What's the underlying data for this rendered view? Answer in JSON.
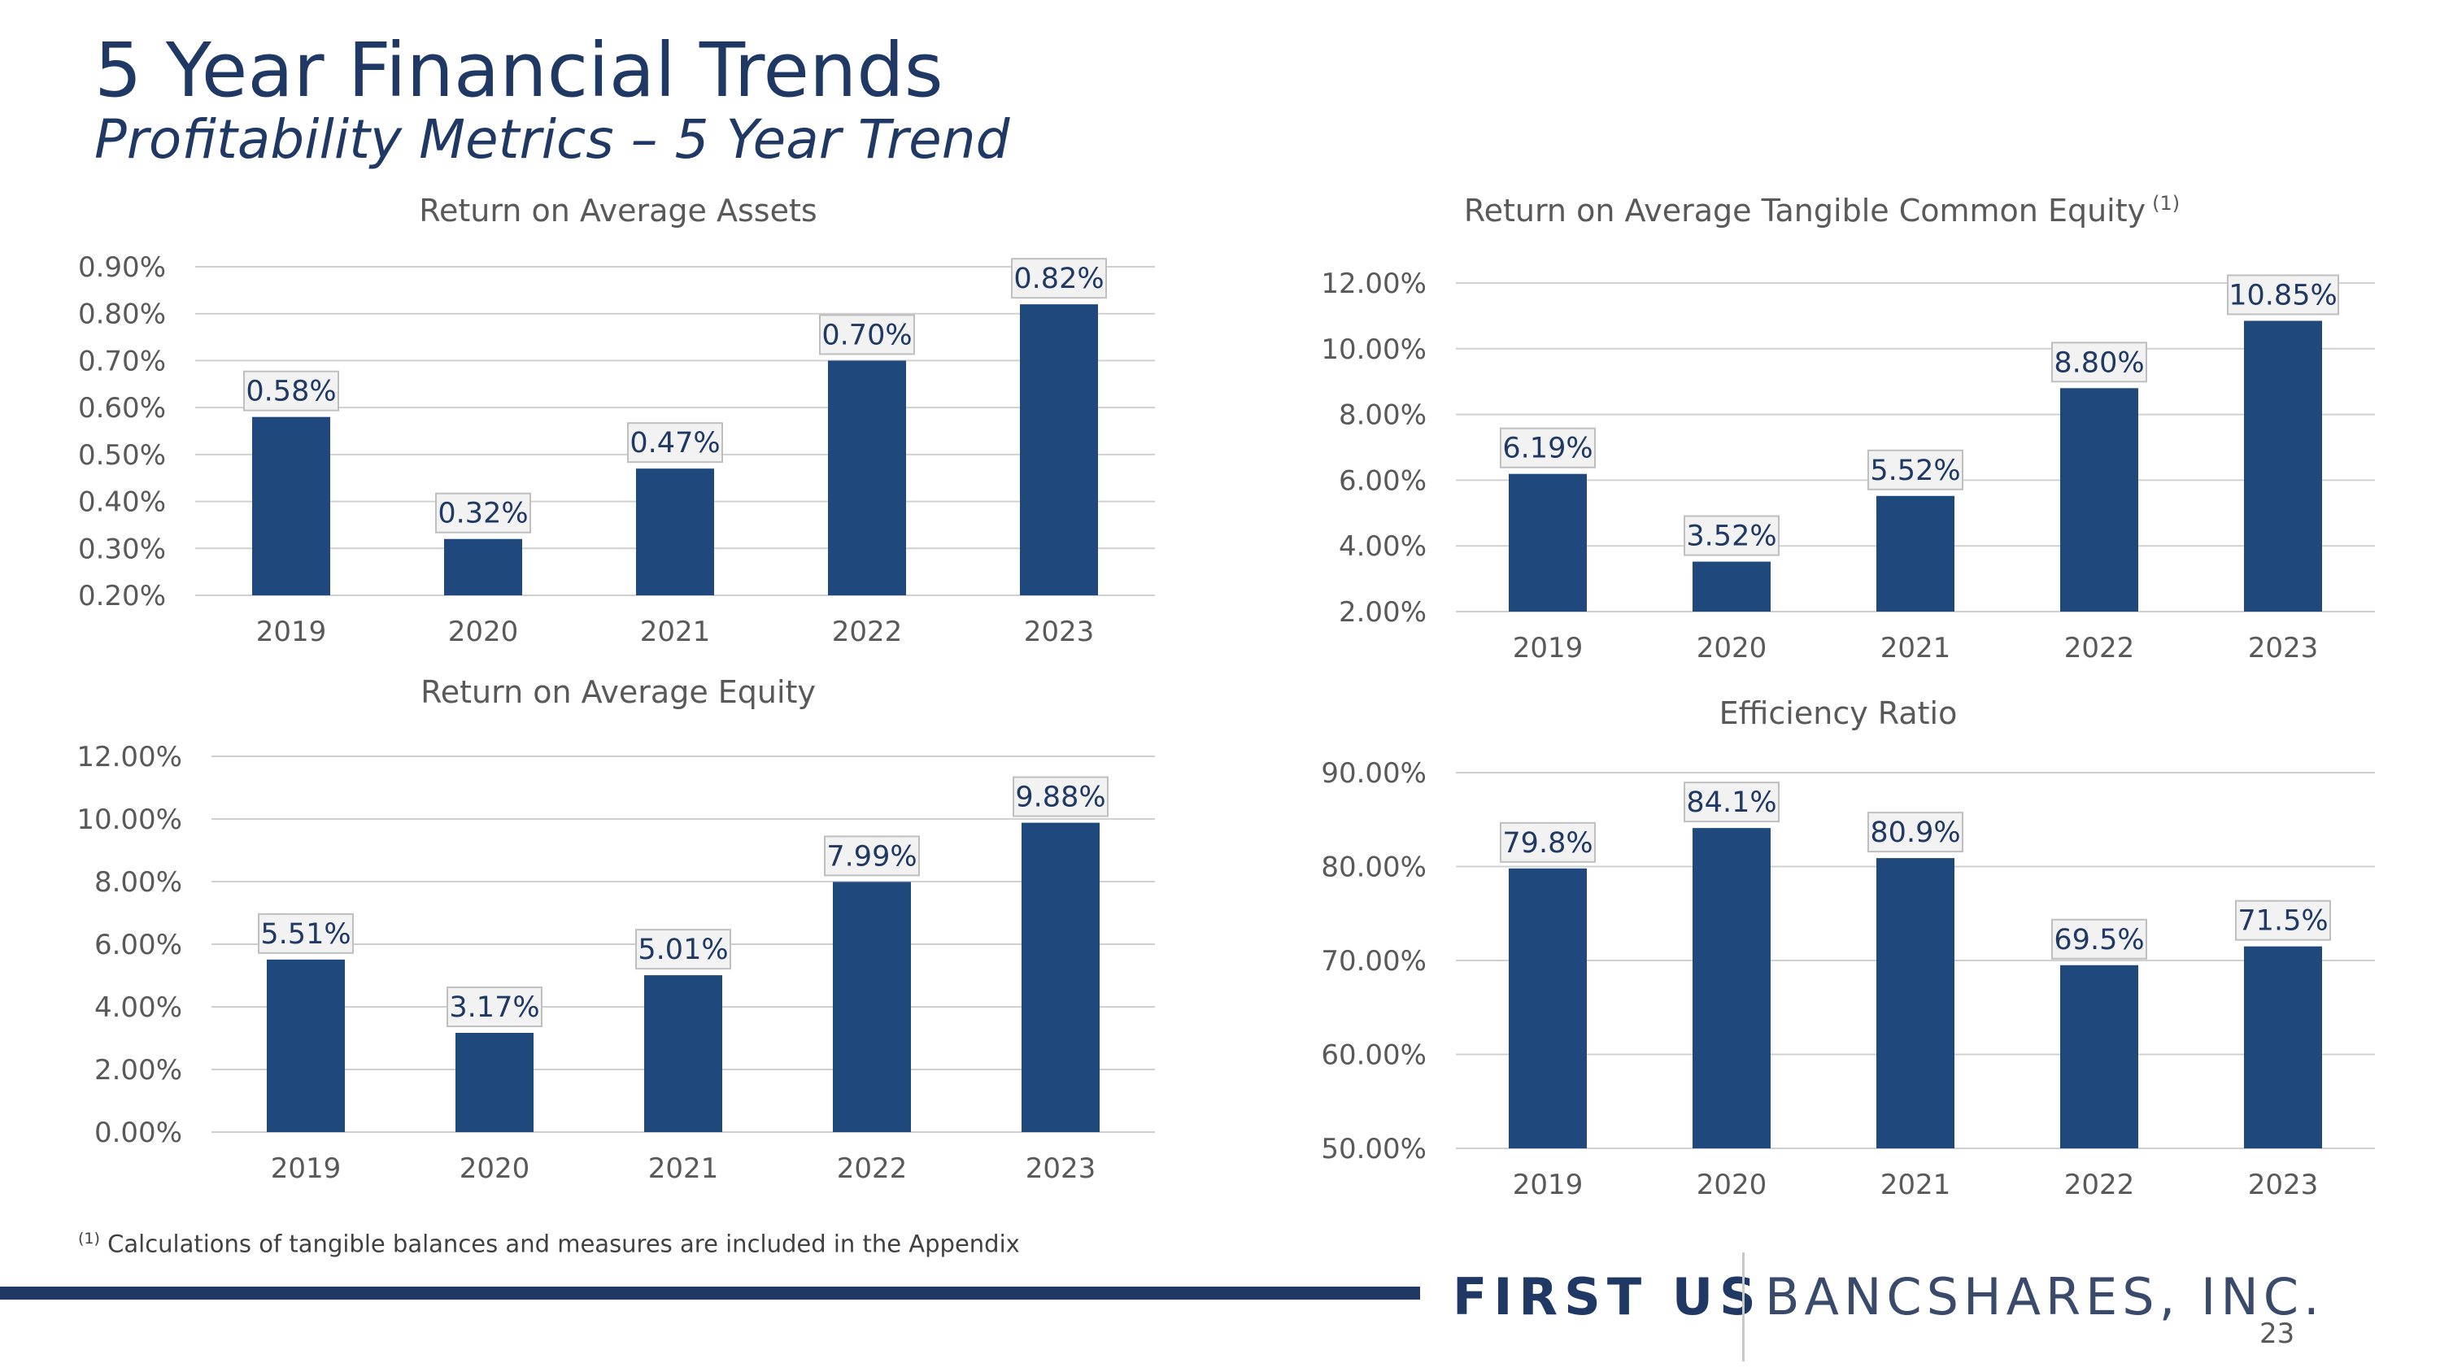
{
  "slide": {
    "title": "5 Year Financial Trends",
    "subtitle": "Profitability Metrics – 5 Year Trend",
    "footnote_marker": "(1)",
    "footnote_text": " Calculations of tangible balances and measures are included in the Appendix",
    "logo_left": "FIRST US",
    "logo_right": "BANCSHARES, INC.",
    "page_number": "23"
  },
  "colors": {
    "bar": "#1f497d",
    "text_dark": "#1f3864",
    "grid": "#d0d0d0",
    "tick_text": "#595959"
  },
  "chart_data": [
    {
      "type": "bar",
      "title": "Return on Average Assets",
      "title_superscript": "",
      "categories": [
        "2019",
        "2020",
        "2021",
        "2022",
        "2023"
      ],
      "values": [
        0.58,
        0.32,
        0.47,
        0.7,
        0.82
      ],
      "data_labels": [
        "0.58%",
        "0.32%",
        "0.47%",
        "0.70%",
        "0.82%"
      ],
      "yticks": [
        "0.20%",
        "0.30%",
        "0.40%",
        "0.50%",
        "0.60%",
        "0.70%",
        "0.80%",
        "0.90%"
      ],
      "ylim": [
        0.2,
        0.9
      ],
      "ystep": 0.1,
      "grid": true
    },
    {
      "type": "bar",
      "title": "Return on Average Tangible Common Equity",
      "title_superscript": "(1)",
      "categories": [
        "2019",
        "2020",
        "2021",
        "2022",
        "2023"
      ],
      "values": [
        6.19,
        3.52,
        5.52,
        8.8,
        10.85
      ],
      "data_labels": [
        "6.19%",
        "3.52%",
        "5.52%",
        "8.80%",
        "10.85%"
      ],
      "yticks": [
        "2.00%",
        "4.00%",
        "6.00%",
        "8.00%",
        "10.00%",
        "12.00%"
      ],
      "ylim": [
        2.0,
        12.0
      ],
      "ystep": 2.0,
      "grid": true
    },
    {
      "type": "bar",
      "title": "Return on Average Equity",
      "title_superscript": "",
      "categories": [
        "2019",
        "2020",
        "2021",
        "2022",
        "2023"
      ],
      "values": [
        5.51,
        3.17,
        5.01,
        7.99,
        9.88
      ],
      "data_labels": [
        "5.51%",
        "3.17%",
        "5.01%",
        "7.99%",
        "9.88%"
      ],
      "yticks": [
        "0.00%",
        "2.00%",
        "4.00%",
        "6.00%",
        "8.00%",
        "10.00%",
        "12.00%"
      ],
      "ylim": [
        0.0,
        12.0
      ],
      "ystep": 2.0,
      "grid": true
    },
    {
      "type": "bar",
      "title": "Efficiency Ratio",
      "title_superscript": "",
      "categories": [
        "2019",
        "2020",
        "2021",
        "2022",
        "2023"
      ],
      "values": [
        79.8,
        84.1,
        80.9,
        69.5,
        71.5
      ],
      "data_labels": [
        "79.8%",
        "84.1%",
        "80.9%",
        "69.5%",
        "71.5%"
      ],
      "yticks": [
        "50.00%",
        "60.00%",
        "70.00%",
        "80.00%",
        "90.00%"
      ],
      "ylim": [
        50.0,
        90.0
      ],
      "ystep": 10.0,
      "grid": true
    }
  ]
}
